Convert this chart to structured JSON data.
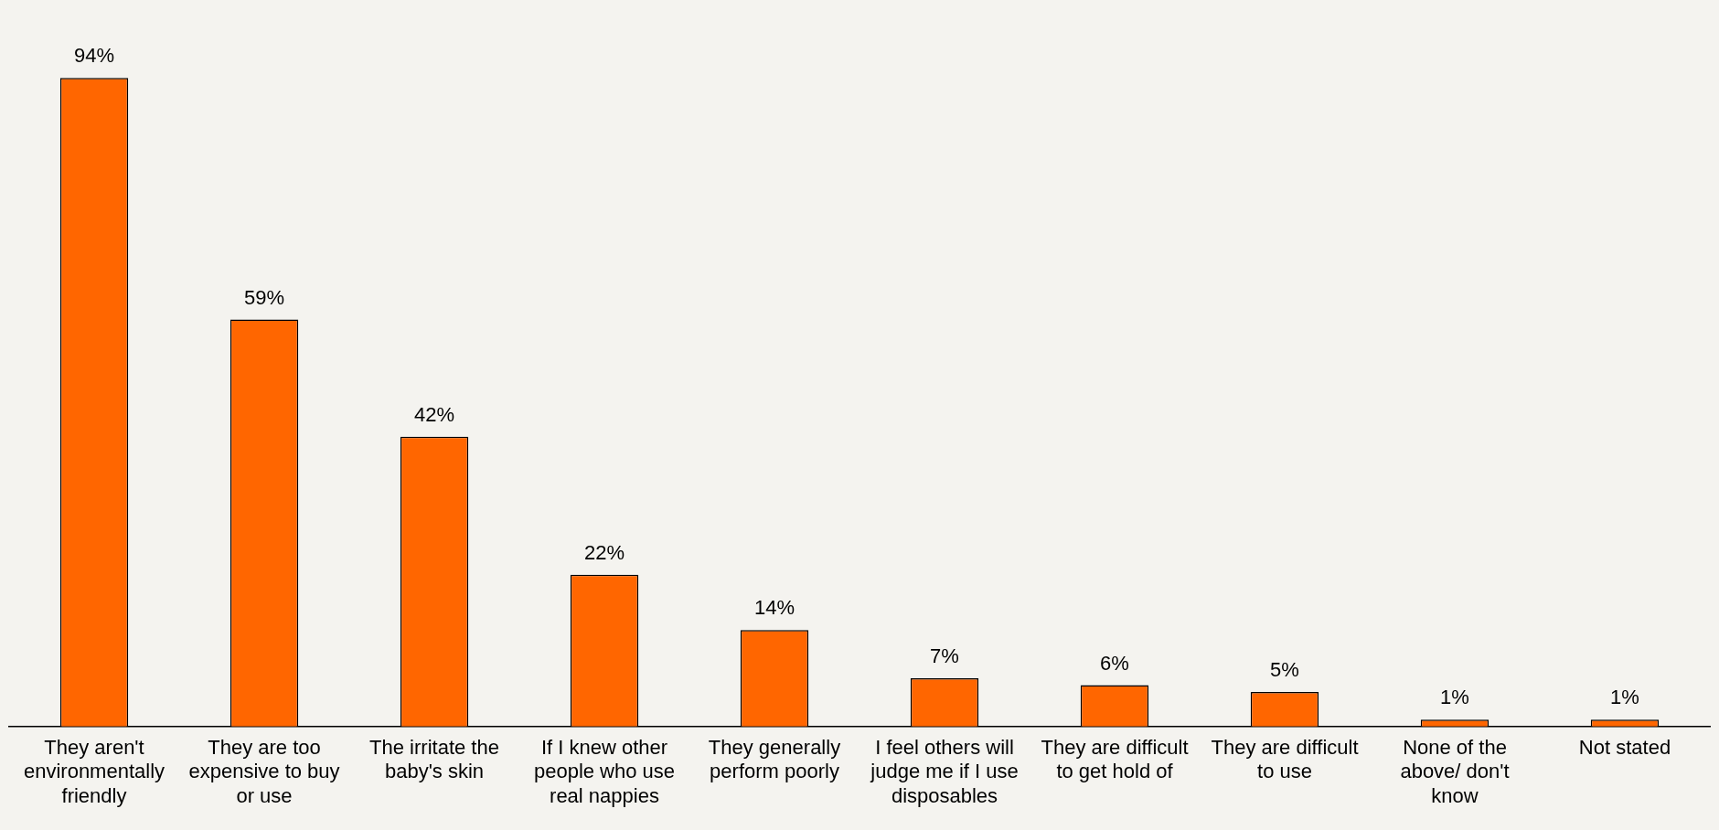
{
  "chart_data": {
    "type": "bar",
    "categories": [
      "They aren't environmentally friendly",
      "They are too expensive to buy or use",
      "The irritate the baby's skin",
      "If I knew other people who use real nappies",
      "They generally perform poorly",
      "I feel others will judge me if I use disposables",
      "They are difficult to get hold of",
      "They are difficult to use",
      "None of the above/ don't know",
      "Not stated"
    ],
    "values": [
      94,
      59,
      42,
      22,
      14,
      7,
      6,
      5,
      1,
      1
    ],
    "value_labels": [
      "94%",
      "59%",
      "42%",
      "22%",
      "14%",
      "7%",
      "6%",
      "5%",
      "1%",
      "1%"
    ],
    "color": "#ff6600",
    "grid": false,
    "legend": false
  }
}
